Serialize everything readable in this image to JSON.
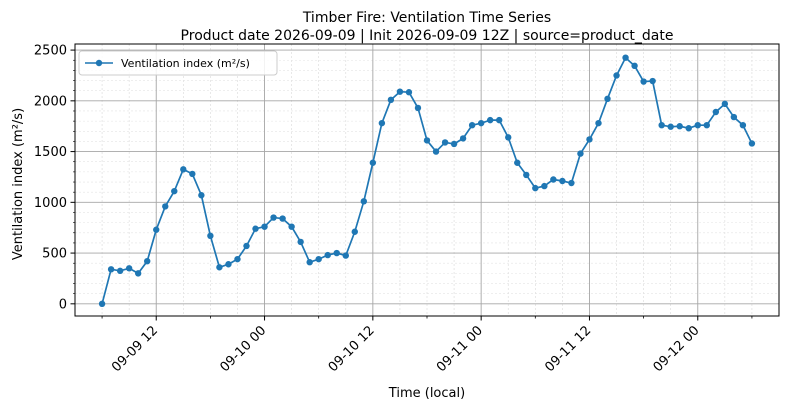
{
  "chart_data": {
    "type": "line",
    "title": "Timber Fire: Ventilation Time Series",
    "subtitle": "Product date 2026-09-09 | Init 2026-09-09 12Z | source=product_date",
    "xlabel": "Time (local)",
    "ylabel": "Ventilation index (m²/s)",
    "x_start": "2026-09-09 06:00",
    "x_step_hours": 1,
    "xlim": [
      "2026-09-09 03:00",
      "2026-09-12 09:00"
    ],
    "ylim": [
      -120,
      2560
    ],
    "x_ticks": [
      {
        "label": "09-09 12",
        "hour": 12
      },
      {
        "label": "09-10 00",
        "hour": 24
      },
      {
        "label": "09-10 12",
        "hour": 36
      },
      {
        "label": "09-11 00",
        "hour": 48
      },
      {
        "label": "09-11 12",
        "hour": 60
      },
      {
        "label": "09-12 00",
        "hour": 72
      }
    ],
    "y_ticks": [
      0,
      500,
      1000,
      1500,
      2000,
      2500
    ],
    "grid": true,
    "legend_position": "top-left",
    "series": [
      {
        "name": "Ventilation index (m²/s)",
        "color": "#1f77b4",
        "values": [
          0,
          340,
          325,
          350,
          300,
          420,
          730,
          960,
          1110,
          1325,
          1280,
          1070,
          670,
          360,
          390,
          440,
          570,
          740,
          760,
          850,
          840,
          760,
          610,
          410,
          440,
          480,
          500,
          475,
          710,
          1010,
          1390,
          1780,
          2010,
          2090,
          2085,
          1930,
          1610,
          1500,
          1590,
          1575,
          1630,
          1760,
          1780,
          1810,
          1810,
          1640,
          1390,
          1270,
          1140,
          1160,
          1225,
          1210,
          1190,
          1480,
          1620,
          1780,
          2020,
          2250,
          2425,
          2345,
          2190,
          2195,
          1760,
          1745,
          1750,
          1730,
          1760,
          1760,
          1890,
          1970,
          1840,
          1760,
          1580
        ]
      }
    ]
  }
}
